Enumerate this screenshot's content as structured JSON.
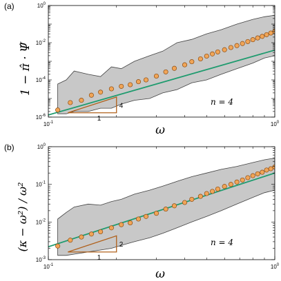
{
  "chart_data": [
    {
      "panel_label": "(a)",
      "type": "scatter",
      "xscale": "log",
      "yscale": "log",
      "xlim": [
        0.1,
        1
      ],
      "ylim": [
        1e-06,
        1
      ],
      "x_tick_labels": [
        "10^-1",
        "10^0"
      ],
      "y_tick_labels": [
        "10^-6",
        "10^-4",
        "10^-2",
        "10^0"
      ],
      "xlabel": "ω",
      "ylabel": "1 − π̂ · Ψ̂",
      "annotation": "n = 4",
      "slope_triangle": {
        "run_label": "1",
        "rise_label": "4",
        "x": [
          0.122,
          0.2
        ],
        "y": [
          1.7e-06,
          1.2e-05
        ]
      },
      "band": {
        "x": [
          0.11,
          0.12,
          0.13,
          0.15,
          0.17,
          0.19,
          0.21,
          0.24,
          0.28,
          0.32,
          0.37,
          0.43,
          0.5,
          0.58,
          0.68,
          0.8,
          0.9,
          1.0
        ],
        "upper": [
          6e-05,
          0.0001,
          0.0003,
          0.0002,
          0.00015,
          0.0005,
          0.0004,
          0.001,
          0.002,
          0.0035,
          0.01,
          0.015,
          0.03,
          0.05,
          0.1,
          0.18,
          0.25,
          0.3
        ],
        "lower": [
          1.5e-06,
          1.5e-06,
          2e-06,
          2e-06,
          3e-06,
          3e-06,
          5e-06,
          8e-06,
          1e-05,
          2e-05,
          3e-05,
          7e-05,
          0.0001,
          0.0002,
          0.0004,
          0.0008,
          0.0015,
          0.002
        ]
      },
      "fit_line": {
        "x": [
          0.1,
          1.0
        ],
        "y": [
          1.3e-06,
          0.004
        ]
      },
      "series": [
        {
          "x": [
            0.11,
            0.125,
            0.14,
            0.155,
            0.17,
            0.19,
            0.21,
            0.23,
            0.25,
            0.27,
            0.3,
            0.33,
            0.36,
            0.4,
            0.43,
            0.47,
            0.5,
            0.53,
            0.56,
            0.6,
            0.64,
            0.68,
            0.72,
            0.76,
            0.8,
            0.84,
            0.88,
            0.92,
            0.96,
            1.0
          ],
          "y": [
            2.4e-06,
            6e-06,
            8e-06,
            1.5e-05,
            2.2e-05,
            3.3e-05,
            4.5e-05,
            5.5e-05,
            8e-05,
            0.0001,
            0.00016,
            0.00027,
            0.00042,
            0.00065,
            0.00095,
            0.00135,
            0.0019,
            0.0025,
            0.0032,
            0.0042,
            0.0055,
            0.007,
            0.009,
            0.0115,
            0.0145,
            0.018,
            0.022,
            0.027,
            0.033,
            0.042
          ]
        }
      ]
    },
    {
      "panel_label": "(b)",
      "type": "scatter",
      "xscale": "log",
      "yscale": "log",
      "xlim": [
        0.1,
        1
      ],
      "ylim": [
        0.001,
        1
      ],
      "x_tick_labels": [
        "10^-1",
        "10^0"
      ],
      "y_tick_labels": [
        "10^-3",
        "10^-2",
        "10^-1",
        "10^0"
      ],
      "xlabel": "ω",
      "ylabel": "(κ − ω²) / ω²",
      "annotation": "n = 4",
      "slope_triangle": {
        "run_label": "1",
        "rise_label": "2",
        "x": [
          0.122,
          0.2
        ],
        "y": [
          0.0016,
          0.0043
        ]
      },
      "band": {
        "x": [
          0.11,
          0.12,
          0.13,
          0.15,
          0.17,
          0.19,
          0.21,
          0.24,
          0.28,
          0.32,
          0.37,
          0.43,
          0.5,
          0.58,
          0.68,
          0.8,
          0.9,
          1.0
        ],
        "upper": [
          0.012,
          0.018,
          0.025,
          0.03,
          0.028,
          0.035,
          0.04,
          0.055,
          0.07,
          0.09,
          0.12,
          0.16,
          0.2,
          0.25,
          0.3,
          0.38,
          0.45,
          0.5
        ],
        "lower": [
          0.0013,
          0.0013,
          0.0014,
          0.0016,
          0.0018,
          0.002,
          0.0024,
          0.003,
          0.0038,
          0.005,
          0.007,
          0.01,
          0.014,
          0.02,
          0.03,
          0.045,
          0.06,
          0.07
        ]
      },
      "fit_line": {
        "x": [
          0.1,
          1.0
        ],
        "y": [
          0.0022,
          0.2
        ]
      },
      "series": [
        {
          "x": [
            0.11,
            0.125,
            0.14,
            0.155,
            0.17,
            0.19,
            0.21,
            0.23,
            0.25,
            0.27,
            0.3,
            0.33,
            0.36,
            0.4,
            0.43,
            0.47,
            0.5,
            0.53,
            0.56,
            0.6,
            0.64,
            0.68,
            0.72,
            0.76,
            0.8,
            0.84,
            0.88,
            0.92,
            0.96,
            1.0
          ],
          "y": [
            0.0023,
            0.0033,
            0.004,
            0.0048,
            0.0055,
            0.007,
            0.0085,
            0.0095,
            0.012,
            0.014,
            0.017,
            0.022,
            0.027,
            0.033,
            0.04,
            0.048,
            0.057,
            0.065,
            0.075,
            0.088,
            0.1,
            0.115,
            0.13,
            0.15,
            0.17,
            0.19,
            0.21,
            0.24,
            0.26,
            0.29
          ]
        }
      ]
    }
  ],
  "colors": {
    "band": "#c8c8c8",
    "band_edge": "#404040",
    "fit_line": "#1e9b6e",
    "marker_fill": "#f0a558",
    "marker_edge": "#8a4a10",
    "triangle": "#b0601a"
  }
}
